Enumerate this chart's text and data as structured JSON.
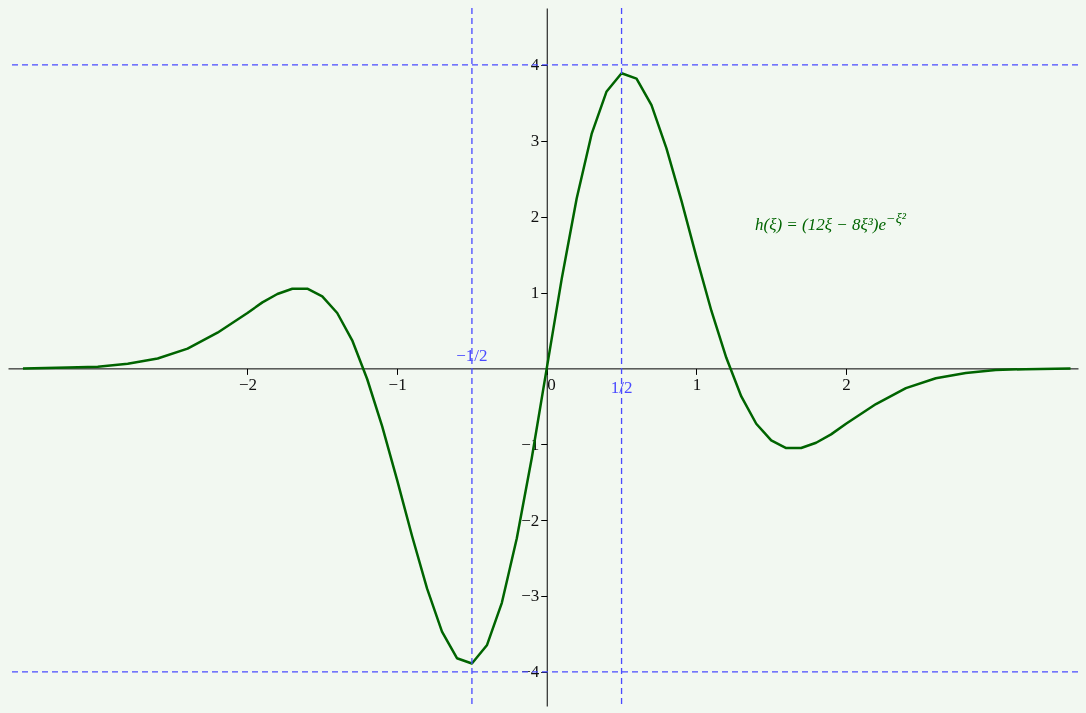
{
  "chart_data": {
    "type": "line",
    "x": [
      -3.5,
      -3.2,
      -3.0,
      -2.8,
      -2.6,
      -2.4,
      -2.2,
      -2.0,
      -1.9,
      -1.8,
      -1.7,
      -1.6,
      -1.5,
      -1.4,
      -1.3,
      -1.2,
      -1.1,
      -1.0,
      -0.9,
      -0.8,
      -0.7,
      -0.6,
      -0.5,
      -0.4,
      -0.3,
      -0.2,
      -0.1,
      0,
      0.1,
      0.2,
      0.3,
      0.4,
      0.5,
      0.6,
      0.7,
      0.8,
      0.9,
      1.0,
      1.1,
      1.2,
      1.3,
      1.4,
      1.5,
      1.6,
      1.7,
      1.8,
      1.9,
      2.0,
      2.2,
      2.4,
      2.6,
      2.8,
      3.0,
      3.2,
      3.5
    ],
    "series": [
      {
        "name": "h(ξ) = (12ξ − 8ξ³)e$^{−ξ²}$",
        "color": "#006400",
        "values": [
          0.0,
          0.01,
          0.02,
          0.06,
          0.13,
          0.26,
          0.47,
          0.73,
          0.87,
          0.98,
          1.05,
          1.05,
          0.95,
          0.73,
          0.37,
          -0.14,
          -0.76,
          -1.47,
          -2.21,
          -2.9,
          -3.47,
          -3.82,
          -3.89,
          -3.65,
          -3.09,
          -2.24,
          -1.18,
          0,
          1.18,
          2.24,
          3.09,
          3.65,
          3.89,
          3.82,
          3.47,
          2.9,
          2.21,
          1.47,
          0.76,
          0.14,
          -0.37,
          -0.73,
          -0.95,
          -1.05,
          -1.05,
          -0.98,
          -0.87,
          -0.73,
          -0.47,
          -0.26,
          -0.13,
          -0.06,
          -0.02,
          -0.01,
          0.0
        ]
      }
    ],
    "xlim": [
      -3.6,
      3.55
    ],
    "ylim": [
      -4.45,
      4.75
    ],
    "xticks": [
      -2,
      -1,
      0,
      1,
      2
    ],
    "yticks": [
      -4,
      -3,
      -2,
      -1,
      1,
      2,
      3,
      4
    ],
    "ref_lines": [
      {
        "axis": "x",
        "value": -0.5,
        "label": "−1/2",
        "color": "#4a4aff",
        "line_style": "dashed"
      },
      {
        "axis": "x",
        "value": 0.5,
        "label": "1/2",
        "color": "#4a4aff",
        "line_style": "dashed"
      },
      {
        "axis": "y",
        "value": 4,
        "color": "#4a4aff",
        "line_style": "dashed"
      },
      {
        "axis": "y",
        "value": -4,
        "color": "#4a4aff",
        "line_style": "dashed"
      }
    ]
  }
}
